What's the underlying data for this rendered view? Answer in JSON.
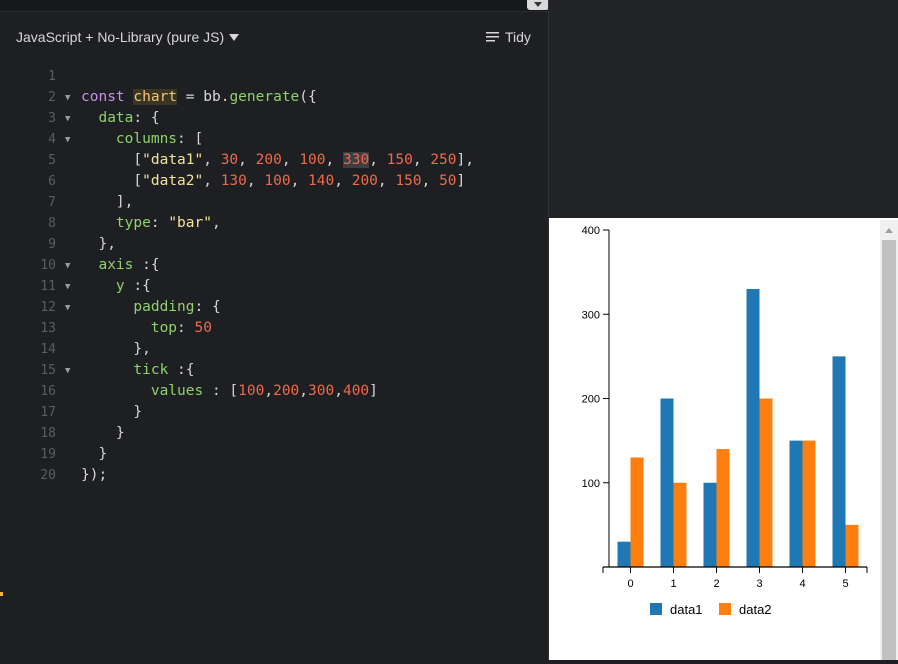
{
  "editor": {
    "language": "JavaScript + No-Library (pure JS)",
    "tidy_label": "Tidy",
    "line_numbers": [
      "1",
      "2",
      "3",
      "4",
      "5",
      "6",
      "7",
      "8",
      "9",
      "10",
      "11",
      "12",
      "13",
      "14",
      "15",
      "16",
      "17",
      "18",
      "19",
      "20"
    ]
  },
  "chart_data": {
    "type": "bar",
    "categories": [
      "0",
      "1",
      "2",
      "3",
      "4",
      "5"
    ],
    "series": [
      {
        "name": "data1",
        "values": [
          30,
          200,
          100,
          330,
          150,
          250
        ],
        "color": "#1f77b4"
      },
      {
        "name": "data2",
        "values": [
          130,
          100,
          140,
          200,
          150,
          50
        ],
        "color": "#ff7f0e"
      }
    ],
    "y_ticks": [
      100,
      200,
      300,
      400
    ],
    "ylim": [
      0,
      400
    ],
    "legend": "bottom"
  }
}
